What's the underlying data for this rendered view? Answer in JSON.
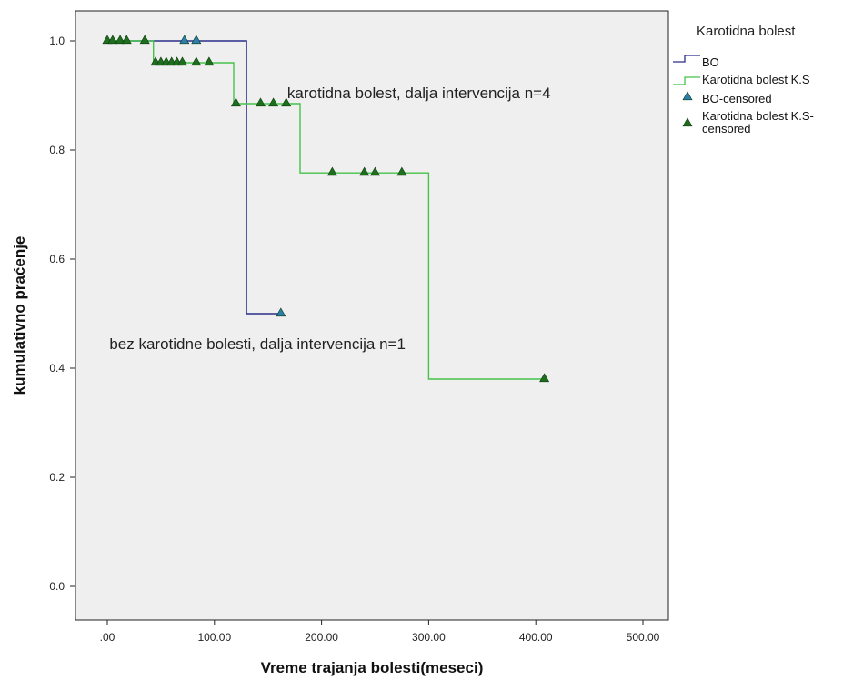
{
  "chart_data": {
    "type": "line",
    "subtype": "kaplan-meier",
    "xlabel": "Vreme trajanja bolesti(meseci)",
    "ylabel": "kumulativno praćenje",
    "xlim": [
      -10,
      520
    ],
    "ylim": [
      -0.06,
      1.06
    ],
    "xticks": [
      0,
      100,
      200,
      300,
      400,
      500
    ],
    "xtick_labels": [
      ".00",
      "100.00",
      "200.00",
      "300.00",
      "400.00",
      "500.00"
    ],
    "yticks": [
      0.0,
      0.2,
      0.4,
      0.6,
      0.8,
      1.0
    ],
    "ytick_labels": [
      "0.0",
      "0.2",
      "0.4",
      "0.6",
      "0.8",
      "1.0"
    ],
    "grid": false,
    "background_color": "#efefef",
    "legend": {
      "title": "Karotidna bolest",
      "position": "outside-right",
      "entries": [
        {
          "label": "BO",
          "kind": "step",
          "color": "#2b2f8c"
        },
        {
          "label": "Karotidna bolest K.S",
          "kind": "step",
          "color": "#45c24a"
        },
        {
          "label": "BO-censored",
          "kind": "marker",
          "color": "#2b7fb0"
        },
        {
          "label": "Karotidna bolest K.S-censored",
          "label_lines": [
            "Karotidna bolest K.S-",
            "censored"
          ],
          "kind": "marker",
          "color": "#1f6e1f"
        }
      ]
    },
    "series": [
      {
        "name": "BO",
        "color": "#2b2f8c",
        "marker_color": "#2b7fb0",
        "steps": [
          [
            0,
            1.0
          ],
          [
            130,
            1.0
          ],
          [
            130,
            0.5
          ],
          [
            162,
            0.5
          ]
        ],
        "censored": [
          [
            72,
            1.0
          ],
          [
            83,
            1.0
          ],
          [
            162,
            0.5
          ]
        ]
      },
      {
        "name": "Karotidna bolest K.S",
        "color": "#45c24a",
        "marker_color": "#1f6e1f",
        "steps": [
          [
            0,
            1.0
          ],
          [
            43,
            1.0
          ],
          [
            43,
            0.96
          ],
          [
            118,
            0.96
          ],
          [
            118,
            0.885
          ],
          [
            180,
            0.885
          ],
          [
            180,
            0.758
          ],
          [
            300,
            0.758
          ],
          [
            300,
            0.38
          ],
          [
            408,
            0.38
          ]
        ],
        "censored": [
          [
            0,
            1.0
          ],
          [
            5,
            1.0
          ],
          [
            12,
            1.0
          ],
          [
            18,
            1.0
          ],
          [
            35,
            1.0
          ],
          [
            45,
            0.96
          ],
          [
            50,
            0.96
          ],
          [
            55,
            0.96
          ],
          [
            60,
            0.96
          ],
          [
            65,
            0.96
          ],
          [
            70,
            0.96
          ],
          [
            83,
            0.96
          ],
          [
            95,
            0.96
          ],
          [
            120,
            0.885
          ],
          [
            143,
            0.885
          ],
          [
            155,
            0.885
          ],
          [
            167,
            0.885
          ],
          [
            210,
            0.758
          ],
          [
            240,
            0.758
          ],
          [
            250,
            0.758
          ],
          [
            275,
            0.758
          ],
          [
            408,
            0.38
          ]
        ]
      }
    ],
    "annotations": [
      {
        "text": "karotidna bolest, dalja intervencija n=4",
        "x": 168,
        "y": 0.895
      },
      {
        "text": "bez karotidne bolesti, dalja intervencija n=1",
        "x": 2,
        "y": 0.435
      }
    ]
  }
}
